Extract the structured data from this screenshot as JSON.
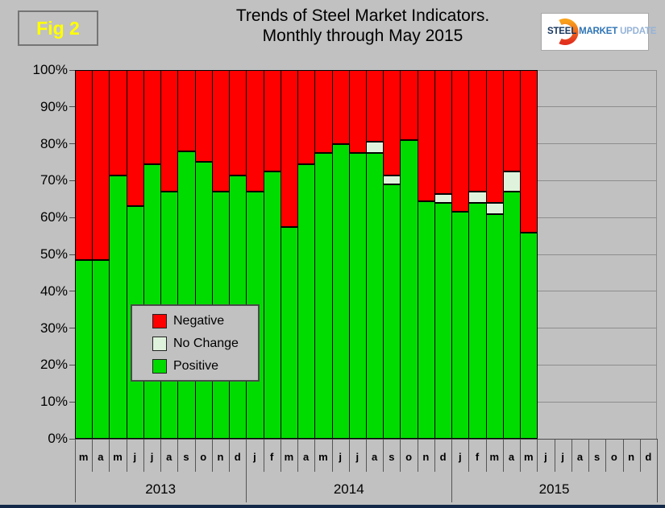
{
  "figure_label": "Fig 2",
  "title": {
    "line1": "Trends of Steel Market Indicators.",
    "line2": "Monthly through May 2015"
  },
  "logo": {
    "word1": "STEEL",
    "word2": "MARKET",
    "word3": "UPDATE",
    "word1_color": "#17365D",
    "word2_color": "#2E74B5",
    "word3_color": "#95B3D7",
    "swoosh_color_top": "#F9A11B",
    "swoosh_color_bottom": "#E2301E"
  },
  "legend": {
    "items": [
      {
        "label": "Negative",
        "color": "#FE0000"
      },
      {
        "label": "No Change",
        "color": "#DFF3DC"
      },
      {
        "label": "Positive",
        "color": "#00DC00"
      }
    ]
  },
  "chart_data": {
    "type": "bar",
    "stacked": true,
    "percent_scale": true,
    "title": "Trends of Steel Market Indicators. Monthly through May 2015",
    "xlabel": "",
    "ylabel": "",
    "ylim": [
      0,
      100
    ],
    "ytick_step": 10,
    "ytick_suffix": "%",
    "grid": true,
    "legend_position": "inside-left",
    "year_groups": [
      {
        "label": "2013",
        "months": 10
      },
      {
        "label": "2014",
        "months": 12
      },
      {
        "label": "2015",
        "months": 12
      }
    ],
    "month_letters": {
      "y2013": [
        "m",
        "a",
        "m",
        "j",
        "j",
        "a",
        "s",
        "o",
        "n",
        "d"
      ],
      "y2014": [
        "j",
        "f",
        "m",
        "a",
        "m",
        "j",
        "j",
        "a",
        "s",
        "o",
        "n",
        "d"
      ],
      "y2015": [
        "j",
        "f",
        "m",
        "a",
        "m",
        "j",
        "j",
        "a",
        "s",
        "o",
        "n",
        "d"
      ]
    },
    "categories": [
      "Mar-13",
      "Apr-13",
      "May-13",
      "Jun-13",
      "Jul-13",
      "Aug-13",
      "Sep-13",
      "Oct-13",
      "Nov-13",
      "Dec-13",
      "Jan-14",
      "Feb-14",
      "Mar-14",
      "Apr-14",
      "May-14",
      "Jun-14",
      "Jul-14",
      "Aug-14",
      "Sep-14",
      "Oct-14",
      "Nov-14",
      "Dec-14",
      "Jan-15",
      "Feb-15",
      "Mar-15",
      "Apr-15",
      "May-15"
    ],
    "empty_categories": [
      "Jun-15",
      "Jul-15",
      "Aug-15",
      "Sep-15",
      "Oct-15",
      "Nov-15",
      "Dec-15"
    ],
    "series": [
      {
        "name": "Positive",
        "color": "#00DC00",
        "values": [
          48.5,
          48.5,
          71.5,
          63,
          74.5,
          67,
          78,
          75,
          67,
          71.5,
          67,
          72.5,
          57.5,
          74.5,
          77.5,
          80,
          77.5,
          77.5,
          69,
          81,
          64.5,
          64,
          61.5,
          64,
          61,
          67,
          56
        ]
      },
      {
        "name": "No Change",
        "color": "#DFF3DC",
        "values": [
          0,
          0,
          0,
          0,
          0,
          0,
          0,
          0,
          0,
          0,
          0,
          0,
          0,
          0,
          0,
          0,
          0,
          3,
          2.5,
          0,
          0,
          2.5,
          0,
          3,
          3,
          5.5,
          0
        ]
      },
      {
        "name": "Negative",
        "color": "#FE0000",
        "values": [
          51.5,
          51.5,
          28.5,
          37,
          25.5,
          33,
          22,
          25,
          33,
          28.5,
          33,
          27.5,
          42.5,
          25.5,
          22.5,
          20,
          22.5,
          19.5,
          28.5,
          19,
          35.5,
          33.5,
          38.5,
          33,
          36,
          27.5,
          44
        ]
      }
    ]
  }
}
